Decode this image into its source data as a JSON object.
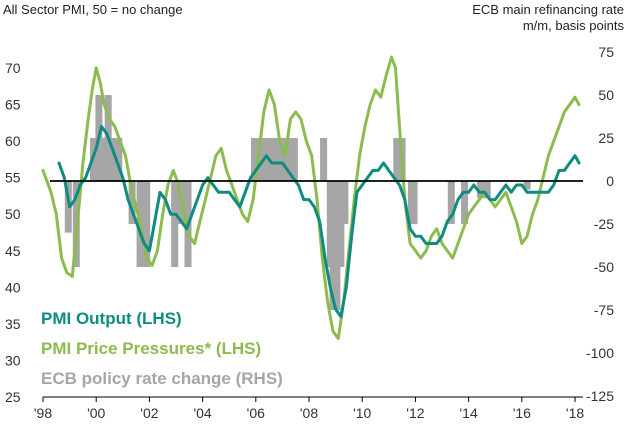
{
  "chart_data": {
    "type": "line",
    "left_axis_title": "All Sector PMI, 50 = no change",
    "right_axis_title_line1": "ECB main refinancing rate",
    "right_axis_title_line2": "m/m, basis points",
    "x_ticks": [
      "'98",
      "'00",
      "'02",
      "'04",
      "'06",
      "'08",
      "'10",
      "'12",
      "'14",
      "'16",
      "'18"
    ],
    "x_tick_values": [
      1998,
      2000,
      2002,
      2004,
      2006,
      2008,
      2010,
      2012,
      2014,
      2016,
      2018
    ],
    "xlim": [
      1998,
      2018.3
    ],
    "ylim_left": [
      25,
      72
    ],
    "y_left_ticks": [
      25,
      30,
      35,
      40,
      45,
      50,
      55,
      60,
      65,
      70
    ],
    "ylim_right": [
      -125,
      75
    ],
    "y_right_ticks": [
      -125,
      -100,
      -75,
      -50,
      -25,
      0,
      25,
      50,
      75
    ],
    "zero_line_right": 0,
    "series": [
      {
        "name": "ECB policy rate change (RHS)",
        "axis": "right",
        "type": "bar",
        "color": "#a6a6a6",
        "x": [
          1998.95,
          1999.25,
          1999.9,
          2000.1,
          2000.3,
          2000.45,
          2000.7,
          2000.85,
          2001.35,
          2001.65,
          2001.75,
          2001.9,
          2002.95,
          2003.2,
          2003.45,
          2005.95,
          2006.2,
          2006.45,
          2006.6,
          2006.8,
          2006.95,
          2007.2,
          2007.45,
          2008.55,
          2008.8,
          2008.9,
          2008.95,
          2009.05,
          2009.2,
          2009.35,
          2011.3,
          2011.5,
          2011.85,
          2011.95,
          2013.35,
          2013.85,
          2014.45,
          2014.7,
          2016.2
        ],
        "values": [
          -30,
          -50,
          25,
          50,
          25,
          50,
          25,
          25,
          -25,
          -50,
          -25,
          -50,
          -50,
          -25,
          -50,
          25,
          25,
          25,
          25,
          25,
          25,
          25,
          25,
          25,
          -50,
          -75,
          -50,
          -75,
          -50,
          -25,
          25,
          25,
          -25,
          -25,
          -25,
          -25,
          -10,
          -10,
          -5
        ]
      },
      {
        "name": "PMI Price Pressures* (LHS)",
        "axis": "left",
        "type": "line",
        "color": "#8cbc4f",
        "x": [
          1998.0,
          1998.3,
          1998.5,
          1998.7,
          1998.9,
          1999.1,
          1999.3,
          1999.5,
          1999.7,
          1999.85,
          2000.0,
          2000.15,
          2000.3,
          2000.5,
          2000.7,
          2000.9,
          2001.1,
          2001.3,
          2001.5,
          2001.7,
          2001.9,
          2002.1,
          2002.3,
          2002.5,
          2002.7,
          2002.9,
          2003.1,
          2003.3,
          2003.5,
          2003.7,
          2003.9,
          2004.1,
          2004.3,
          2004.5,
          2004.7,
          2004.9,
          2005.1,
          2005.3,
          2005.5,
          2005.7,
          2005.9,
          2006.1,
          2006.3,
          2006.5,
          2006.7,
          2006.9,
          2007.1,
          2007.3,
          2007.5,
          2007.7,
          2007.9,
          2008.1,
          2008.3,
          2008.5,
          2008.7,
          2008.9,
          2009.1,
          2009.3,
          2009.5,
          2009.7,
          2009.9,
          2010.1,
          2010.3,
          2010.5,
          2010.7,
          2010.9,
          2011.1,
          2011.25,
          2011.4,
          2011.6,
          2011.8,
          2012.0,
          2012.2,
          2012.4,
          2012.6,
          2012.8,
          2013.0,
          2013.2,
          2013.4,
          2013.6,
          2013.8,
          2014.0,
          2014.2,
          2014.4,
          2014.6,
          2014.8,
          2015.0,
          2015.2,
          2015.4,
          2015.6,
          2015.8,
          2016.0,
          2016.2,
          2016.4,
          2016.6,
          2016.8,
          2017.0,
          2017.2,
          2017.4,
          2017.6,
          2017.8,
          2018.0,
          2018.15
        ],
        "values": [
          56,
          53,
          50,
          44,
          42,
          41.5,
          49,
          57,
          63,
          67,
          70,
          68,
          65,
          63,
          62,
          60,
          58,
          54,
          51,
          48,
          44,
          43,
          45,
          50,
          54,
          56,
          54,
          50,
          47,
          46,
          49,
          52,
          55,
          58,
          59,
          56,
          54,
          52,
          50,
          49,
          52,
          58,
          64,
          67,
          65,
          60,
          58,
          63,
          64,
          63,
          60,
          58,
          52,
          44,
          38,
          34,
          33,
          38,
          45,
          52,
          58,
          62,
          65,
          67,
          66,
          69,
          71.5,
          70,
          62,
          52,
          46,
          45,
          44,
          45,
          47,
          48,
          46,
          45,
          44,
          46,
          48,
          50,
          51,
          52,
          53,
          52,
          51,
          52,
          53,
          51,
          49,
          46,
          47,
          50,
          52,
          55,
          58,
          60,
          62,
          64,
          65,
          66,
          65
        ]
      },
      {
        "name": "PMI Output (LHS)",
        "axis": "left",
        "type": "line",
        "color": "#0e8c80",
        "x": [
          1998.6,
          1998.8,
          1999.0,
          1999.2,
          1999.4,
          1999.6,
          1999.8,
          2000.0,
          2000.2,
          2000.4,
          2000.6,
          2000.8,
          2001.0,
          2001.2,
          2001.4,
          2001.6,
          2001.8,
          2002.0,
          2002.2,
          2002.4,
          2002.6,
          2002.8,
          2003.0,
          2003.2,
          2003.4,
          2003.6,
          2003.8,
          2004.0,
          2004.2,
          2004.4,
          2004.6,
          2004.8,
          2005.0,
          2005.2,
          2005.4,
          2005.6,
          2005.8,
          2006.0,
          2006.2,
          2006.4,
          2006.6,
          2006.8,
          2007.0,
          2007.2,
          2007.4,
          2007.6,
          2007.8,
          2008.0,
          2008.2,
          2008.4,
          2008.6,
          2008.8,
          2009.0,
          2009.2,
          2009.4,
          2009.6,
          2009.8,
          2010.0,
          2010.2,
          2010.4,
          2010.6,
          2010.8,
          2011.0,
          2011.2,
          2011.4,
          2011.6,
          2011.8,
          2012.0,
          2012.2,
          2012.4,
          2012.6,
          2012.8,
          2013.0,
          2013.2,
          2013.4,
          2013.6,
          2013.8,
          2014.0,
          2014.2,
          2014.4,
          2014.6,
          2014.8,
          2015.0,
          2015.2,
          2015.4,
          2015.6,
          2015.8,
          2016.0,
          2016.2,
          2016.4,
          2016.6,
          2016.8,
          2017.0,
          2017.2,
          2017.4,
          2017.6,
          2017.8,
          2018.0,
          2018.15
        ],
        "values": [
          57,
          55,
          51,
          52,
          54,
          55,
          57,
          59,
          62,
          61,
          59,
          57,
          55,
          52,
          50,
          48,
          46,
          45,
          49,
          53,
          52,
          50,
          50,
          49,
          48,
          50,
          52,
          54,
          55,
          54,
          53,
          53,
          53,
          52,
          51,
          53,
          55,
          56,
          57,
          58,
          57,
          57,
          57,
          56,
          55,
          54,
          52,
          52,
          51,
          49,
          44,
          40,
          37,
          36,
          40,
          47,
          53,
          54,
          55,
          56,
          56,
          57,
          56,
          55,
          54,
          52,
          48,
          47,
          47,
          46,
          46,
          46,
          47,
          49,
          50,
          52,
          53,
          53,
          54,
          53,
          53,
          52,
          52,
          53,
          54,
          53,
          54,
          54,
          53,
          53,
          53,
          53,
          53,
          54,
          56,
          56,
          57,
          58,
          57
        ]
      }
    ],
    "legend": [
      "PMI Output (LHS)",
      "PMI Price Pressures* (LHS)",
      "ECB policy rate change (RHS)"
    ],
    "legend_colors": [
      "#0e8c80",
      "#8cbc4f",
      "#a6a6a6"
    ],
    "legend_placement": "lower-left"
  }
}
